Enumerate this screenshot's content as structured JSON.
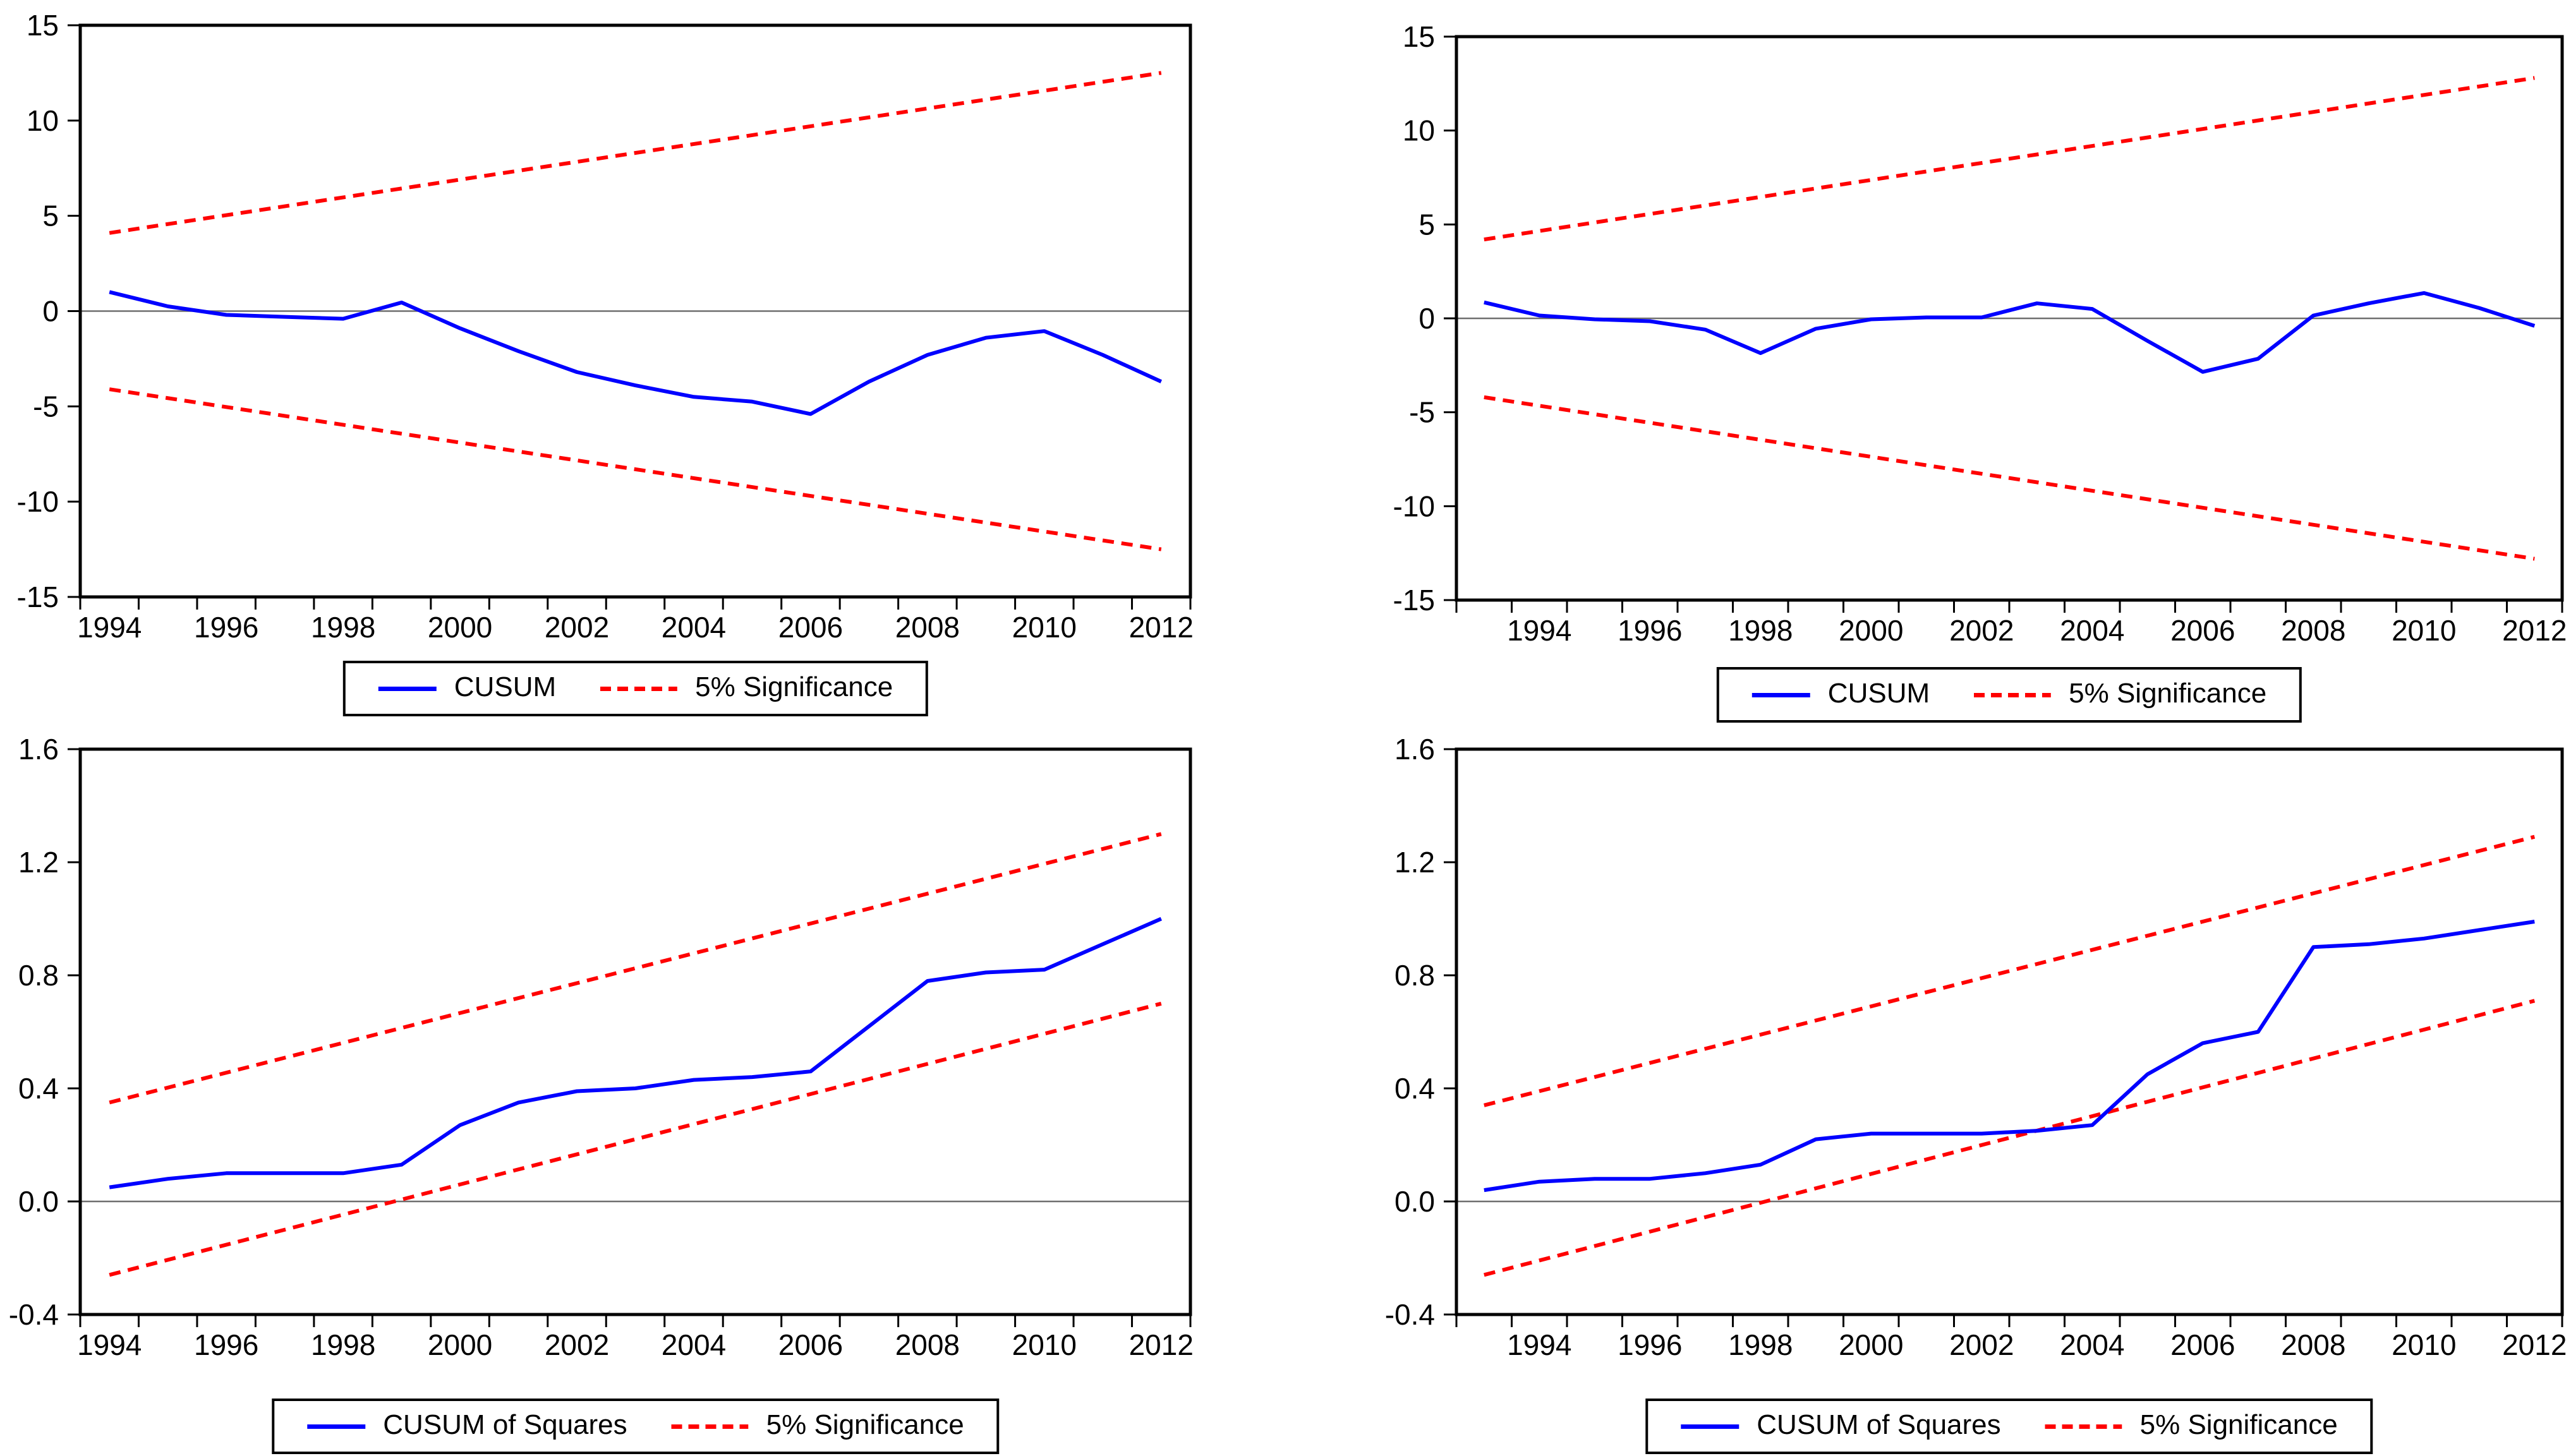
{
  "page": {
    "background": "#ffffff",
    "description_texts": []
  },
  "colors": {
    "cusum": "#0000ff",
    "significance": "#ff0000",
    "axis": "#000000",
    "zero_line": "#6f6f6f",
    "text": "#000000"
  },
  "chart_data": [
    {
      "type": "line",
      "position": "top-left",
      "title": "",
      "xlabel": "",
      "ylabel": "",
      "grid": false,
      "legend_position": "bottom-center",
      "legend": [
        "CUSUM",
        "5% Significance"
      ],
      "x": [
        1994,
        1995,
        1996,
        1997,
        1998,
        1999,
        2000,
        2001,
        2002,
        2003,
        2004,
        2005,
        2006,
        2007,
        2008,
        2009,
        2010,
        2011,
        2012
      ],
      "x_tick_labels": [
        "1994",
        "1996",
        "1998",
        "2000",
        "2002",
        "2004",
        "2006",
        "2008",
        "2010",
        "2012"
      ],
      "ylim": [
        -15,
        15
      ],
      "y_ticks": [
        15,
        10,
        5,
        0,
        -5,
        -10,
        -15
      ],
      "y_tick_labels": [
        "15",
        "10",
        "5",
        "0",
        "-5",
        "-10",
        "-15"
      ],
      "series": [
        {
          "name": "CUSUM",
          "style": "solid",
          "color_key": "cusum",
          "values": [
            1.0,
            0.25,
            -0.2,
            -0.3,
            -0.4,
            0.45,
            -0.9,
            -2.1,
            -3.2,
            -3.9,
            -4.5,
            -4.75,
            -5.4,
            -3.7,
            -2.3,
            -1.4,
            -1.05,
            -2.3,
            -3.7
          ]
        },
        {
          "name": "5% Significance upper bound",
          "style": "dashed",
          "color_key": "significance",
          "endpoints": [
            4.1,
            12.5
          ]
        },
        {
          "name": "5% Significance lower bound",
          "style": "dashed",
          "color_key": "significance",
          "endpoints": [
            -4.1,
            -12.5
          ]
        }
      ]
    },
    {
      "type": "line",
      "position": "top-right",
      "title": "",
      "xlabel": "",
      "ylabel": "",
      "grid": false,
      "legend_position": "bottom-center",
      "legend": [
        "CUSUM",
        "5% Significance"
      ],
      "x": [
        1993,
        1994,
        1995,
        1996,
        1997,
        1998,
        1999,
        2000,
        2001,
        2002,
        2003,
        2004,
        2005,
        2006,
        2007,
        2008,
        2009,
        2010,
        2011,
        2012
      ],
      "x_tick_labels": [
        "1994",
        "1996",
        "1998",
        "2000",
        "2002",
        "2004",
        "2006",
        "2008",
        "2010",
        "2012"
      ],
      "ylim": [
        -15,
        15
      ],
      "y_ticks": [
        15,
        10,
        5,
        0,
        -5,
        -10,
        -15
      ],
      "y_tick_labels": [
        "15",
        "10",
        "5",
        "0",
        "-5",
        "-10",
        "-15"
      ],
      "series": [
        {
          "name": "CUSUM",
          "style": "solid",
          "color_key": "cusum",
          "values": [
            0.85,
            0.15,
            -0.05,
            -0.15,
            -0.6,
            -1.85,
            -0.55,
            -0.05,
            0.05,
            0.05,
            0.8,
            0.5,
            -1.2,
            -2.85,
            -2.15,
            0.15,
            0.8,
            1.35,
            0.55,
            -0.4
          ]
        },
        {
          "name": "5% Significance upper bound",
          "style": "dashed",
          "color_key": "significance",
          "endpoints": [
            4.2,
            12.8
          ]
        },
        {
          "name": "5% Significance lower bound",
          "style": "dashed",
          "color_key": "significance",
          "endpoints": [
            -4.2,
            -12.8
          ]
        }
      ]
    },
    {
      "type": "line",
      "position": "bottom-left",
      "title": "",
      "xlabel": "",
      "ylabel": "",
      "grid": false,
      "legend_position": "bottom-center",
      "legend": [
        "CUSUM of Squares",
        "5% Significance"
      ],
      "x": [
        1994,
        1995,
        1996,
        1997,
        1998,
        1999,
        2000,
        2001,
        2002,
        2003,
        2004,
        2005,
        2006,
        2007,
        2008,
        2009,
        2010,
        2011,
        2012
      ],
      "x_tick_labels": [
        "1994",
        "1996",
        "1998",
        "2000",
        "2002",
        "2004",
        "2006",
        "2008",
        "2010",
        "2012"
      ],
      "ylim": [
        -0.4,
        1.6
      ],
      "y_ticks": [
        1.6,
        1.2,
        0.8,
        0.4,
        0.0,
        -0.4
      ],
      "y_tick_labels": [
        "1.6",
        "1.2",
        "0.8",
        "0.4",
        "0.0",
        "-0.4"
      ],
      "series": [
        {
          "name": "CUSUM of Squares",
          "style": "solid",
          "color_key": "cusum",
          "values": [
            0.05,
            0.08,
            0.1,
            0.1,
            0.1,
            0.13,
            0.27,
            0.35,
            0.39,
            0.4,
            0.43,
            0.44,
            0.46,
            0.62,
            0.78,
            0.81,
            0.82,
            0.91,
            1.0
          ]
        },
        {
          "name": "5% Significance upper bound",
          "style": "dashed",
          "color_key": "significance",
          "endpoints": [
            0.35,
            1.3
          ]
        },
        {
          "name": "5% Significance lower bound",
          "style": "dashed",
          "color_key": "significance",
          "endpoints": [
            -0.26,
            0.7
          ]
        }
      ]
    },
    {
      "type": "line",
      "position": "bottom-right",
      "title": "",
      "xlabel": "",
      "ylabel": "",
      "grid": false,
      "legend_position": "bottom-center",
      "legend": [
        "CUSUM of Squares",
        "5% Significance"
      ],
      "x": [
        1993,
        1994,
        1995,
        1996,
        1997,
        1998,
        1999,
        2000,
        2001,
        2002,
        2003,
        2004,
        2005,
        2006,
        2007,
        2008,
        2009,
        2010,
        2011,
        2012
      ],
      "x_tick_labels": [
        "1994",
        "1996",
        "1998",
        "2000",
        "2002",
        "2004",
        "2006",
        "2008",
        "2010",
        "2012"
      ],
      "ylim": [
        -0.4,
        1.6
      ],
      "y_ticks": [
        1.6,
        1.2,
        0.8,
        0.4,
        0.0,
        -0.4
      ],
      "y_tick_labels": [
        "1.6",
        "1.2",
        "0.8",
        "0.4",
        "0.0",
        "-0.4"
      ],
      "series": [
        {
          "name": "CUSUM of Squares",
          "style": "solid",
          "color_key": "cusum",
          "values": [
            0.04,
            0.07,
            0.08,
            0.08,
            0.1,
            0.13,
            0.22,
            0.24,
            0.24,
            0.24,
            0.25,
            0.27,
            0.45,
            0.56,
            0.6,
            0.9,
            0.91,
            0.93,
            0.96,
            0.99
          ]
        },
        {
          "name": "5% Significance upper bound",
          "style": "dashed",
          "color_key": "significance",
          "endpoints": [
            0.34,
            1.29
          ]
        },
        {
          "name": "5% Significance lower bound",
          "style": "dashed",
          "color_key": "significance",
          "endpoints": [
            -0.26,
            0.71
          ]
        }
      ]
    }
  ]
}
